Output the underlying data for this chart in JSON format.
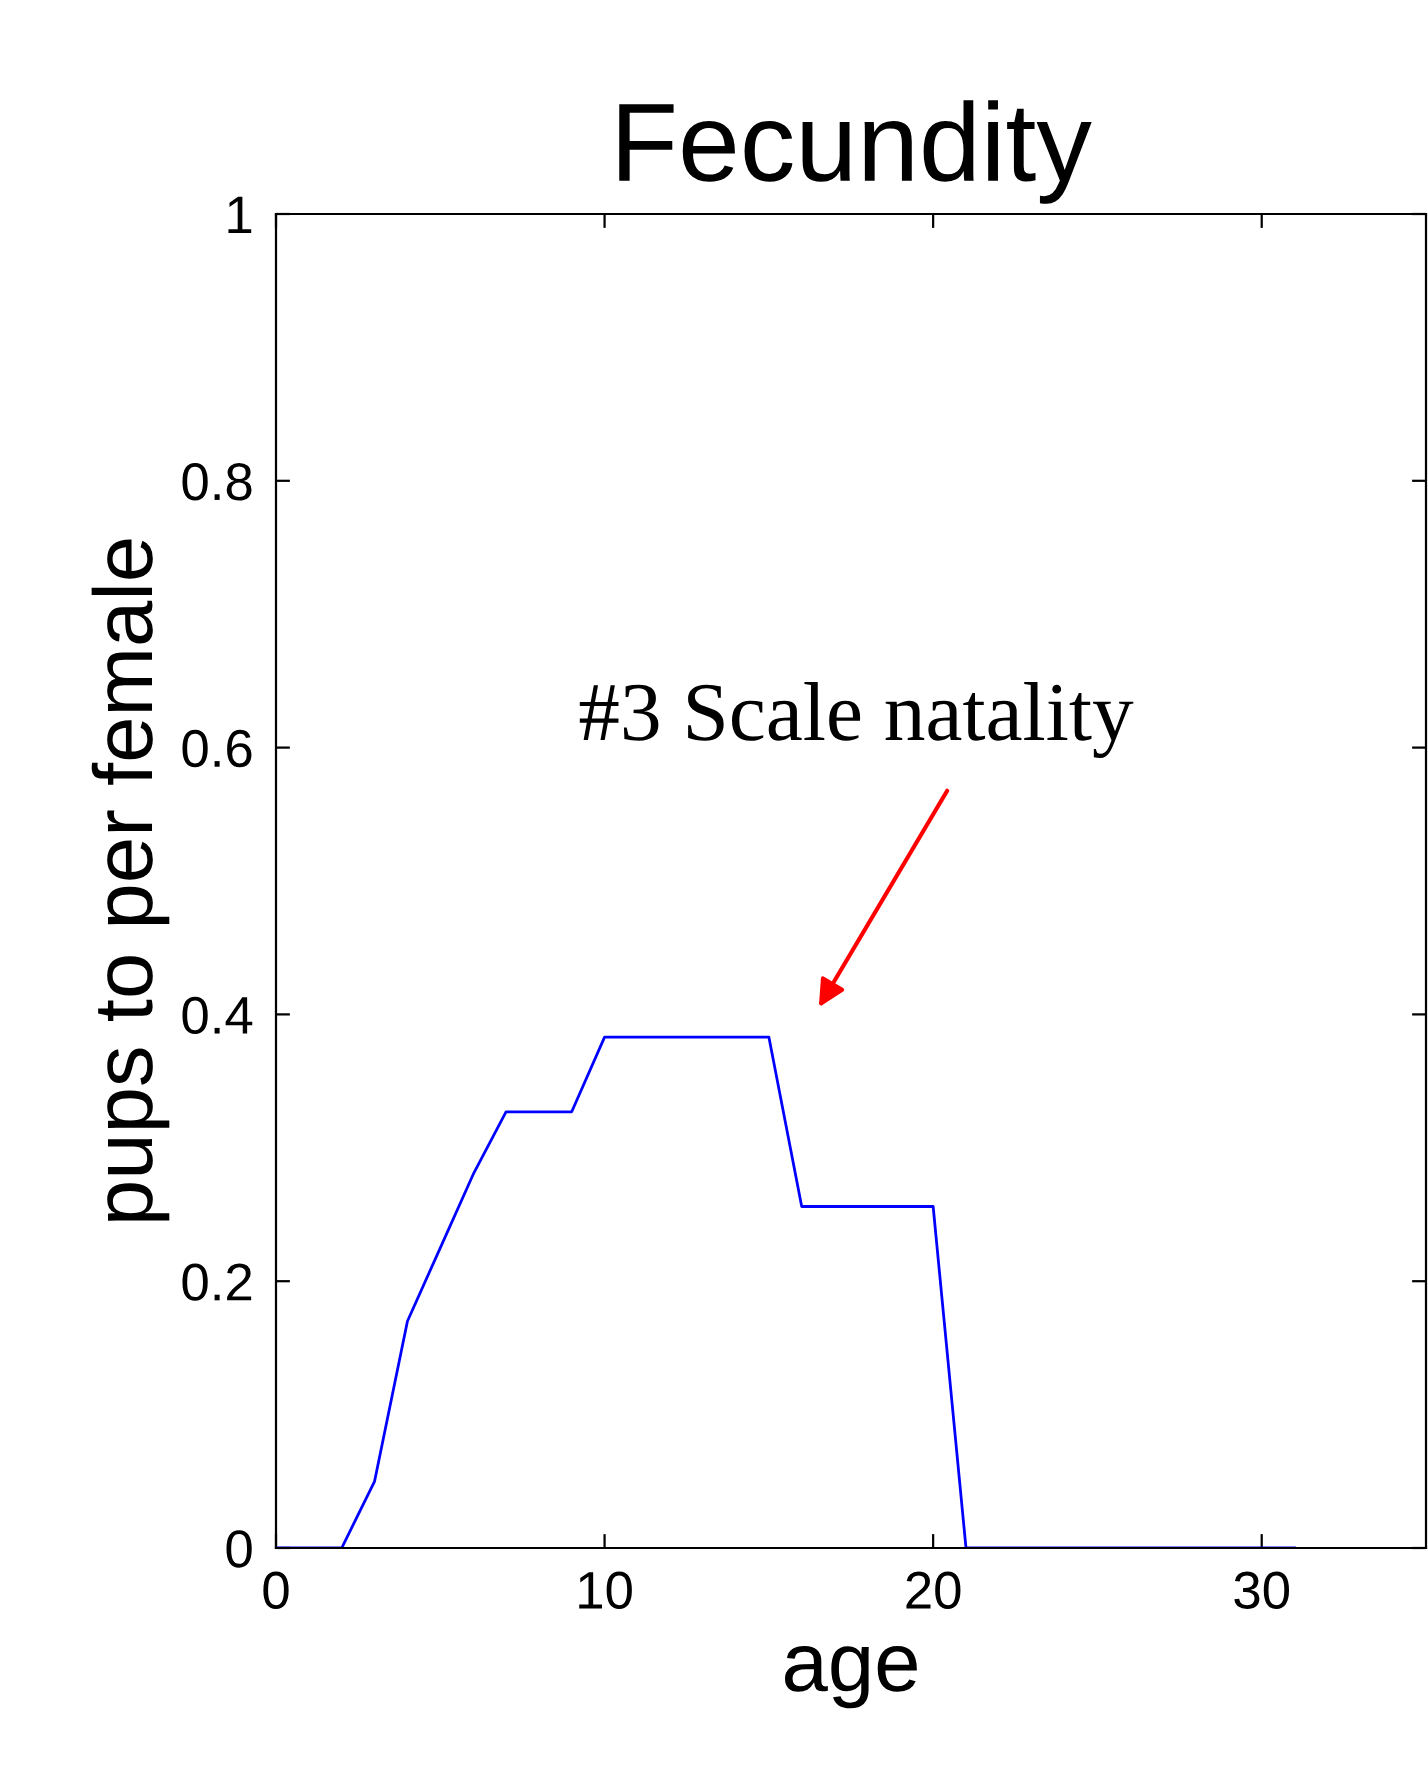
{
  "chart_data": {
    "type": "line",
    "title": "Fecundity",
    "xlabel": "age",
    "ylabel": "pups to per female",
    "x": [
      0,
      1,
      2,
      3,
      4,
      5,
      6,
      7,
      8,
      9,
      10,
      11,
      12,
      13,
      14,
      15,
      16,
      17,
      18,
      19,
      20,
      21,
      22,
      23,
      24,
      25,
      26,
      27,
      28,
      29,
      30,
      31
    ],
    "series": [
      {
        "color": "#0000ff",
        "values": [
          0,
          0,
          0,
          0.05,
          0.17,
          0.225,
          0.28,
          0.327,
          0.327,
          0.327,
          0.383,
          0.383,
          0.383,
          0.383,
          0.383,
          0.383,
          0.256,
          0.256,
          0.256,
          0.256,
          0.256,
          0,
          0,
          0,
          0,
          0,
          0,
          0,
          0,
          0,
          0,
          0
        ]
      }
    ],
    "xlim": [
      0,
      35
    ],
    "ylim": [
      0,
      1
    ],
    "xticks": [
      0,
      10,
      20,
      30
    ],
    "yticks": [
      0,
      0.2,
      0.4,
      0.6,
      0.8,
      1
    ],
    "annotations": [
      "#3 Scale natality"
    ],
    "grid": false,
    "legend": false,
    "marker": "none",
    "line_style": "solid"
  }
}
